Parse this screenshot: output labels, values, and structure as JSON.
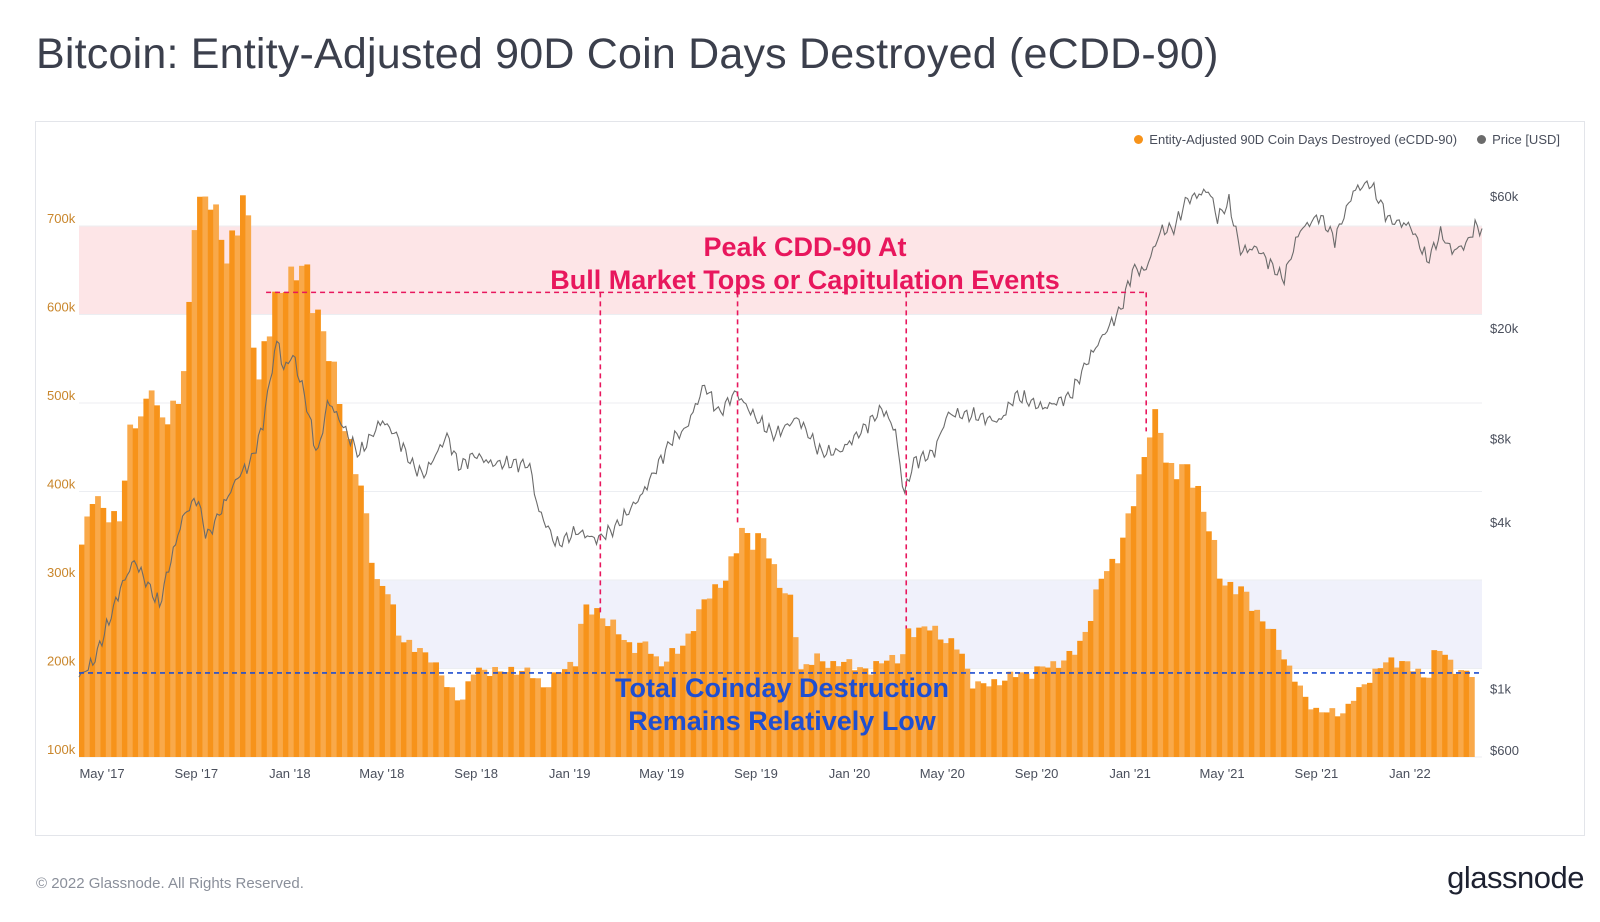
{
  "page": {
    "title": "Bitcoin: Entity-Adjusted 90D Coin Days Destroyed (eCDD-90)",
    "footer": "© 2022 Glassnode. All Rights Reserved.",
    "logo_text": "glassnode"
  },
  "colors": {
    "series_fill": "#f7931a",
    "series_fill_light": "#f9a94a",
    "price_line": "#6b6b6b",
    "upper_band": "#fde2e4",
    "lower_band": "#eef0fb",
    "annotation_red": "#e8175d",
    "annotation_blue": "#1f4fd1",
    "grid": "#eceef2",
    "axis_text": "#c9862b",
    "axis_text_right": "#4a4f5c"
  },
  "chart_data": {
    "type": "area",
    "title": "Bitcoin: Entity-Adjusted 90D Coin Days Destroyed (eCDD-90)",
    "legend_position": "top-right",
    "grid": true,
    "x_range": [
      "2017-04",
      "2022-04"
    ],
    "x_ticks": [
      "May '17",
      "Sep '17",
      "Jan '18",
      "May '18",
      "Sep '18",
      "Jan '19",
      "May '19",
      "Sep '19",
      "Jan '20",
      "May '20",
      "Sep '20",
      "Jan '21",
      "May '21",
      "Sep '21",
      "Jan '22"
    ],
    "y_left": {
      "ticks": [
        100000,
        200000,
        300000,
        400000,
        500000,
        600000,
        700000
      ],
      "tick_labels": [
        "100k",
        "200k",
        "300k",
        "400k",
        "500k",
        "600k",
        "700k"
      ],
      "range": [
        93000,
        720000
      ]
    },
    "y_right": {
      "scale": "log",
      "ticks": [
        600,
        1000,
        4000,
        8000,
        20000,
        60000
      ],
      "tick_labels": [
        "$600",
        "$1k",
        "$4k",
        "$8k",
        "$20k",
        "$60k"
      ]
    },
    "series": [
      {
        "name": "Entity-Adjusted 90D Coin Days Destroyed (eCDD-90)",
        "axis": "left",
        "points": [
          [
            "2017-04-01",
            340000
          ],
          [
            "2017-04-15",
            400000
          ],
          [
            "2017-05-01",
            370000
          ],
          [
            "2017-05-20",
            375000
          ],
          [
            "2017-06-05",
            470000
          ],
          [
            "2017-06-20",
            490000
          ],
          [
            "2017-07-01",
            530000
          ],
          [
            "2017-07-10",
            470000
          ],
          [
            "2017-07-25",
            490000
          ],
          [
            "2017-08-10",
            520000
          ],
          [
            "2017-08-20",
            600000
          ],
          [
            "2017-08-28",
            745000
          ],
          [
            "2017-09-05",
            730000
          ],
          [
            "2017-09-15",
            740000
          ],
          [
            "2017-09-25",
            690000
          ],
          [
            "2017-10-05",
            670000
          ],
          [
            "2017-10-20",
            700000
          ],
          [
            "2017-10-30",
            735000
          ],
          [
            "2017-11-05",
            680000
          ],
          [
            "2017-11-15",
            510000
          ],
          [
            "2017-11-25",
            570000
          ],
          [
            "2017-12-05",
            590000
          ],
          [
            "2017-12-20",
            640000
          ],
          [
            "2018-01-05",
            650000
          ],
          [
            "2018-01-20",
            640000
          ],
          [
            "2018-02-05",
            600000
          ],
          [
            "2018-02-20",
            540000
          ],
          [
            "2018-03-05",
            500000
          ],
          [
            "2018-03-20",
            440000
          ],
          [
            "2018-04-05",
            380000
          ],
          [
            "2018-04-20",
            300000
          ],
          [
            "2018-05-05",
            285000
          ],
          [
            "2018-05-20",
            240000
          ],
          [
            "2018-06-10",
            220000
          ],
          [
            "2018-07-01",
            215000
          ],
          [
            "2018-07-20",
            180000
          ],
          [
            "2018-08-10",
            165000
          ],
          [
            "2018-08-25",
            195000
          ],
          [
            "2018-09-10",
            200000
          ],
          [
            "2018-10-01",
            195000
          ],
          [
            "2018-10-20",
            200000
          ],
          [
            "2018-11-05",
            195000
          ],
          [
            "2018-11-25",
            180000
          ],
          [
            "2018-12-15",
            195000
          ],
          [
            "2019-01-05",
            210000
          ],
          [
            "2019-01-15",
            265000
          ],
          [
            "2019-02-05",
            265000
          ],
          [
            "2019-03-01",
            240000
          ],
          [
            "2019-03-20",
            225000
          ],
          [
            "2019-04-10",
            225000
          ],
          [
            "2019-04-25",
            205000
          ],
          [
            "2019-05-20",
            220000
          ],
          [
            "2019-06-15",
            260000
          ],
          [
            "2019-07-01",
            290000
          ],
          [
            "2019-07-20",
            300000
          ],
          [
            "2019-08-01",
            325000
          ],
          [
            "2019-08-08",
            365000
          ],
          [
            "2019-08-25",
            340000
          ],
          [
            "2019-09-10",
            345000
          ],
          [
            "2019-09-30",
            290000
          ],
          [
            "2019-10-15",
            270000
          ],
          [
            "2019-10-25",
            200000
          ],
          [
            "2019-11-15",
            210000
          ],
          [
            "2019-12-10",
            205000
          ],
          [
            "2020-01-05",
            205000
          ],
          [
            "2020-01-25",
            195000
          ],
          [
            "2020-02-15",
            215000
          ],
          [
            "2020-03-05",
            205000
          ],
          [
            "2020-03-15",
            245000
          ],
          [
            "2020-04-10",
            245000
          ],
          [
            "2020-05-01",
            235000
          ],
          [
            "2020-05-20",
            220000
          ],
          [
            "2020-06-05",
            185000
          ],
          [
            "2020-06-25",
            180000
          ],
          [
            "2020-07-20",
            190000
          ],
          [
            "2020-08-20",
            195000
          ],
          [
            "2020-09-20",
            205000
          ],
          [
            "2020-10-15",
            215000
          ],
          [
            "2020-10-28",
            235000
          ],
          [
            "2020-11-10",
            270000
          ],
          [
            "2020-11-25",
            310000
          ],
          [
            "2020-12-10",
            325000
          ],
          [
            "2020-12-25",
            360000
          ],
          [
            "2021-01-10",
            420000
          ],
          [
            "2021-01-25",
            480000
          ],
          [
            "2021-02-05",
            470000
          ],
          [
            "2021-02-15",
            430000
          ],
          [
            "2021-03-05",
            425000
          ],
          [
            "2021-03-25",
            410000
          ],
          [
            "2021-04-10",
            360000
          ],
          [
            "2021-04-25",
            300000
          ],
          [
            "2021-05-10",
            295000
          ],
          [
            "2021-05-30",
            280000
          ],
          [
            "2021-06-20",
            255000
          ],
          [
            "2021-07-10",
            225000
          ],
          [
            "2021-07-25",
            200000
          ],
          [
            "2021-08-10",
            170000
          ],
          [
            "2021-08-25",
            155000
          ],
          [
            "2021-09-10",
            150000
          ],
          [
            "2021-10-01",
            150000
          ],
          [
            "2021-10-20",
            170000
          ],
          [
            "2021-11-10",
            195000
          ],
          [
            "2021-11-25",
            205000
          ],
          [
            "2021-12-20",
            210000
          ],
          [
            "2022-01-05",
            195000
          ],
          [
            "2022-01-20",
            190000
          ],
          [
            "2022-02-01",
            225000
          ],
          [
            "2022-02-20",
            205000
          ],
          [
            "2022-03-10",
            195000
          ],
          [
            "2022-03-25",
            190000
          ]
        ]
      },
      {
        "name": "Price [USD]",
        "axis": "right",
        "points": [
          [
            "2017-04-01",
            1100
          ],
          [
            "2017-04-20",
            1250
          ],
          [
            "2017-05-10",
            1750
          ],
          [
            "2017-05-25",
            2300
          ],
          [
            "2017-06-12",
            2900
          ],
          [
            "2017-07-15",
            2000
          ],
          [
            "2017-07-25",
            2600
          ],
          [
            "2017-08-15",
            4200
          ],
          [
            "2017-09-02",
            4900
          ],
          [
            "2017-09-15",
            3500
          ],
          [
            "2017-10-10",
            4800
          ],
          [
            "2017-10-25",
            5800
          ],
          [
            "2017-11-10",
            6500
          ],
          [
            "2017-11-25",
            8500
          ],
          [
            "2017-12-10",
            15000
          ],
          [
            "2017-12-17",
            19000
          ],
          [
            "2017-12-22",
            14000
          ],
          [
            "2018-01-05",
            16000
          ],
          [
            "2018-01-20",
            11500
          ],
          [
            "2018-02-06",
            6900
          ],
          [
            "2018-02-20",
            11000
          ],
          [
            "2018-03-10",
            9000
          ],
          [
            "2018-04-01",
            7000
          ],
          [
            "2018-05-01",
            9300
          ],
          [
            "2018-05-20",
            8200
          ],
          [
            "2018-06-10",
            6400
          ],
          [
            "2018-06-25",
            5900
          ],
          [
            "2018-07-25",
            8200
          ],
          [
            "2018-08-10",
            6300
          ],
          [
            "2018-08-30",
            7000
          ],
          [
            "2018-09-20",
            6500
          ],
          [
            "2018-10-20",
            6500
          ],
          [
            "2018-11-10",
            6400
          ],
          [
            "2018-11-20",
            4500
          ],
          [
            "2018-12-15",
            3300
          ],
          [
            "2019-01-10",
            3700
          ],
          [
            "2019-02-05",
            3450
          ],
          [
            "2019-03-01",
            3800
          ],
          [
            "2019-04-05",
            5000
          ],
          [
            "2019-05-15",
            8000
          ],
          [
            "2019-06-01",
            8600
          ],
          [
            "2019-06-26",
            12500
          ],
          [
            "2019-07-15",
            9800
          ],
          [
            "2019-08-05",
            11800
          ],
          [
            "2019-08-30",
            9600
          ],
          [
            "2019-09-25",
            8200
          ],
          [
            "2019-10-25",
            9500
          ],
          [
            "2019-11-25",
            7100
          ],
          [
            "2019-12-20",
            7200
          ],
          [
            "2020-01-20",
            8700
          ],
          [
            "2020-02-13",
            10300
          ],
          [
            "2020-03-01",
            8500
          ],
          [
            "2020-03-12",
            5000
          ],
          [
            "2020-03-25",
            6600
          ],
          [
            "2020-04-20",
            7100
          ],
          [
            "2020-05-08",
            9800
          ],
          [
            "2020-06-10",
            9700
          ],
          [
            "2020-07-15",
            9200
          ],
          [
            "2020-08-05",
            11500
          ],
          [
            "2020-09-10",
            10300
          ],
          [
            "2020-10-15",
            11400
          ],
          [
            "2020-11-05",
            15000
          ],
          [
            "2020-11-25",
            18500
          ],
          [
            "2020-12-20",
            23500
          ],
          [
            "2021-01-05",
            33000
          ],
          [
            "2021-01-20",
            32000
          ],
          [
            "2021-02-10",
            45000
          ],
          [
            "2021-02-28",
            46000
          ],
          [
            "2021-03-15",
            58000
          ],
          [
            "2021-04-14",
            63000
          ],
          [
            "2021-04-25",
            50000
          ],
          [
            "2021-05-10",
            57000
          ],
          [
            "2021-05-25",
            38000
          ],
          [
            "2021-06-15",
            39000
          ],
          [
            "2021-07-20",
            30000
          ],
          [
            "2021-08-10",
            45000
          ],
          [
            "2021-09-05",
            51000
          ],
          [
            "2021-09-25",
            42000
          ],
          [
            "2021-10-20",
            63000
          ],
          [
            "2021-11-10",
            67000
          ],
          [
            "2021-12-05",
            49000
          ],
          [
            "2022-01-01",
            47000
          ],
          [
            "2022-01-24",
            35000
          ],
          [
            "2022-02-10",
            44000
          ],
          [
            "2022-02-25",
            38000
          ],
          [
            "2022-03-15",
            40000
          ],
          [
            "2022-03-28",
            47000
          ],
          [
            "2022-04-05",
            45000
          ]
        ]
      }
    ],
    "reference_bands": [
      {
        "from": 600000,
        "to": 700000,
        "axis": "left"
      },
      {
        "from": 200000,
        "to": 300000,
        "axis": "left"
      }
    ],
    "reference_line": {
      "value": 195000,
      "axis": "left"
    },
    "peak_markers": [
      "2017-12-01",
      "2019-02-10",
      "2019-08-08",
      "2020-03-15",
      "2021-01-22"
    ],
    "peak_marker_level": 625000,
    "annotations": [
      {
        "lines": [
          "Peak CDD-90 At",
          "Bull Market Tops or Capitulation Events"
        ],
        "color": "red"
      },
      {
        "lines": [
          "Total Coinday Destruction",
          "Remains Relatively Low"
        ],
        "color": "blue"
      }
    ]
  }
}
